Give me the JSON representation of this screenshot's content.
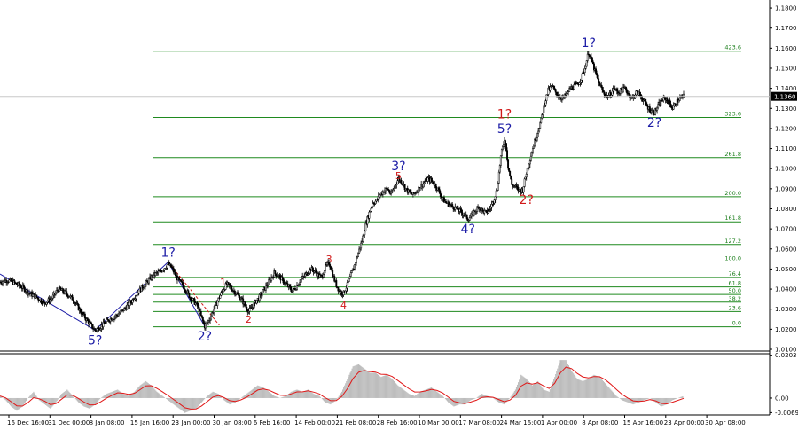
{
  "colors": {
    "background": "#ffffff",
    "candle": "#000000",
    "fib_line": "#1f8a1f",
    "fib_label": "#1a7d1a",
    "wave_blue": "#1c1ca6",
    "wave_red": "#d11919",
    "osc_fill": "#bdbdbd",
    "osc_signal": "#e01818",
    "current_price_line": "#c8c8c8",
    "current_price_box_bg": "#000000",
    "current_price_box_fg": "#ffffff"
  },
  "chart_data": [
    {
      "type": "line",
      "subtype": "candlestick",
      "title": "",
      "xlabel": "",
      "ylabel": "",
      "ylim": [
        1.01,
        1.184
      ],
      "current_price": "1.1360",
      "y_ticks": [
        "1.1800",
        "1.1700",
        "1.1600",
        "1.1500",
        "1.1400",
        "1.1300",
        "1.1200",
        "1.1100",
        "1.1000",
        "1.0900",
        "1.0800",
        "1.0700",
        "1.0600",
        "1.0500",
        "1.0400",
        "1.0300",
        "1.0200",
        "1.0100"
      ],
      "x_ticks": [
        "16 Dec 16:00",
        "31 Dec 00:00",
        "8 Jan 08:00",
        "15 Jan 16:00",
        "23 Jan 00:00",
        "30 Jan 08:00",
        "6 Feb 16:00",
        "14 Feb 00:00",
        "21 Feb 08:00",
        "28 Feb 16:00",
        "10 Mar 00:00",
        "17 Mar 08:00",
        "24 Mar 16:00",
        "1 Apr 00:00",
        "8 Apr 08:00",
        "15 Apr 16:00",
        "23 Apr 00:00",
        "30 Apr 08:00"
      ],
      "price_path": [
        [
          0,
          1.0435
        ],
        [
          4,
          1.0445
        ],
        [
          8,
          1.043
        ],
        [
          12,
          1.041
        ],
        [
          16,
          1.038
        ],
        [
          20,
          1.036
        ],
        [
          24,
          1.033
        ],
        [
          28,
          1.035
        ],
        [
          32,
          1.04
        ],
        [
          36,
          1.038
        ],
        [
          40,
          1.035
        ],
        [
          44,
          1.029
        ],
        [
          48,
          1.024
        ],
        [
          52,
          1.0195
        ],
        [
          56,
          1.022
        ],
        [
          60,
          1.025
        ],
        [
          64,
          1.027
        ],
        [
          68,
          1.03
        ],
        [
          72,
          1.034
        ],
        [
          76,
          1.039
        ],
        [
          80,
          1.043
        ],
        [
          84,
          1.047
        ],
        [
          88,
          1.049
        ],
        [
          92,
          1.0525
        ],
        [
          94,
          1.0505
        ],
        [
          96,
          1.047
        ],
        [
          98,
          1.044
        ],
        [
          100,
          1.042
        ],
        [
          102,
          1.039
        ],
        [
          104,
          1.036
        ],
        [
          106,
          1.034
        ],
        [
          108,
          1.0315
        ],
        [
          110,
          1.0265
        ],
        [
          112,
          1.0215
        ],
        [
          114,
          1.024
        ],
        [
          116,
          1.028
        ],
        [
          118,
          1.032
        ],
        [
          120,
          1.036
        ],
        [
          122,
          1.0395
        ],
        [
          124,
          1.0425
        ],
        [
          126,
          1.041
        ],
        [
          128,
          1.039
        ],
        [
          130,
          1.037
        ],
        [
          132,
          1.035
        ],
        [
          134,
          1.032
        ],
        [
          136,
          1.029
        ],
        [
          138,
          1.031
        ],
        [
          140,
          1.034
        ],
        [
          142,
          1.036
        ],
        [
          144,
          1.039
        ],
        [
          146,
          1.042
        ],
        [
          148,
          1.045
        ],
        [
          150,
          1.048
        ],
        [
          152,
          1.047
        ],
        [
          154,
          1.045
        ],
        [
          156,
          1.043
        ],
        [
          158,
          1.041
        ],
        [
          160,
          1.039
        ],
        [
          162,
          1.041
        ],
        [
          164,
          1.044
        ],
        [
          166,
          1.046
        ],
        [
          168,
          1.048
        ],
        [
          170,
          1.05
        ],
        [
          172,
          1.049
        ],
        [
          174,
          1.047
        ],
        [
          176,
          1.046
        ],
        [
          178,
          1.051
        ],
        [
          180,
          1.053
        ],
        [
          181,
          1.051
        ],
        [
          182,
          1.047
        ],
        [
          184,
          1.042
        ],
        [
          186,
          1.0385
        ],
        [
          188,
          1.038
        ],
        [
          190,
          1.042
        ],
        [
          192,
          1.047
        ],
        [
          194,
          1.052
        ],
        [
          196,
          1.058
        ],
        [
          198,
          1.064
        ],
        [
          200,
          1.072
        ],
        [
          202,
          1.078
        ],
        [
          204,
          1.083
        ],
        [
          206,
          1.084
        ],
        [
          208,
          1.087
        ],
        [
          210,
          1.089
        ],
        [
          212,
          1.09
        ],
        [
          214,
          1.087
        ],
        [
          216,
          1.0915
        ],
        [
          218,
          1.095
        ],
        [
          220,
          1.093
        ],
        [
          222,
          1.09
        ],
        [
          224,
          1.088
        ],
        [
          226,
          1.087
        ],
        [
          228,
          1.089
        ],
        [
          230,
          1.091
        ],
        [
          232,
          1.093
        ],
        [
          234,
          1.095
        ],
        [
          236,
          1.094
        ],
        [
          238,
          1.092
        ],
        [
          240,
          1.089
        ],
        [
          242,
          1.085
        ],
        [
          244,
          1.083
        ],
        [
          246,
          1.082
        ],
        [
          248,
          1.081
        ],
        [
          250,
          1.08
        ],
        [
          252,
          1.0785
        ],
        [
          254,
          1.077
        ],
        [
          256,
          1.075
        ],
        [
          258,
          1.0765
        ],
        [
          260,
          1.079
        ],
        [
          262,
          1.081
        ],
        [
          264,
          1.079
        ],
        [
          266,
          1.078
        ],
        [
          268,
          1.08
        ],
        [
          270,
          1.084
        ],
        [
          272,
          1.09
        ],
        [
          274,
          1.106
        ],
        [
          276,
          1.115
        ],
        [
          277,
          1.11
        ],
        [
          278,
          1.101
        ],
        [
          280,
          1.092
        ],
        [
          282,
          1.091
        ],
        [
          284,
          1.089
        ],
        [
          286,
          1.0895
        ],
        [
          288,
          1.098
        ],
        [
          290,
          1.105
        ],
        [
          292,
          1.112
        ],
        [
          294,
          1.118
        ],
        [
          296,
          1.124
        ],
        [
          298,
          1.133
        ],
        [
          300,
          1.139
        ],
        [
          302,
          1.141
        ],
        [
          304,
          1.138
        ],
        [
          306,
          1.136
        ],
        [
          308,
          1.135
        ],
        [
          310,
          1.137
        ],
        [
          312,
          1.14
        ],
        [
          314,
          1.141
        ],
        [
          316,
          1.142
        ],
        [
          318,
          1.145
        ],
        [
          320,
          1.15
        ],
        [
          322,
          1.158
        ],
        [
          324,
          1.153
        ],
        [
          326,
          1.147
        ],
        [
          328,
          1.142
        ],
        [
          330,
          1.138
        ],
        [
          332,
          1.136
        ],
        [
          334,
          1.137
        ],
        [
          336,
          1.14
        ],
        [
          338,
          1.138
        ],
        [
          340,
          1.139
        ],
        [
          342,
          1.14
        ],
        [
          344,
          1.137
        ],
        [
          346,
          1.135
        ],
        [
          348,
          1.138
        ],
        [
          350,
          1.137
        ],
        [
          352,
          1.134
        ],
        [
          354,
          1.131
        ],
        [
          356,
          1.129
        ],
        [
          358,
          1.128
        ],
        [
          360,
          1.131
        ],
        [
          362,
          1.134
        ],
        [
          364,
          1.135
        ],
        [
          366,
          1.133
        ],
        [
          368,
          1.13
        ],
        [
          370,
          1.133
        ],
        [
          372,
          1.135
        ],
        [
          374,
          1.136
        ]
      ],
      "fib_levels": [
        {
          "label": "423.6",
          "price": 1.1585
        },
        {
          "label": "323.6",
          "price": 1.1255
        },
        {
          "label": "261.8",
          "price": 1.1055
        },
        {
          "label": "200.0",
          "price": 1.086
        },
        {
          "label": "161.8",
          "price": 1.0735
        },
        {
          "label": "127.2",
          "price": 1.0622
        },
        {
          "label": "100.0",
          "price": 1.0535
        },
        {
          "label": "76.4",
          "price": 1.0458
        },
        {
          "label": "61.8",
          "price": 1.0411
        },
        {
          "label": "50.0",
          "price": 1.0373
        },
        {
          "label": "38.2",
          "price": 1.0335
        },
        {
          "label": "23.6",
          "price": 1.0288
        },
        {
          "label": "0.0",
          "price": 1.0212
        }
      ],
      "wave_labels": [
        {
          "text": "1?",
          "color": "blue",
          "x": 92,
          "price": 1.0535,
          "size": "large",
          "pos": "above"
        },
        {
          "text": "5?",
          "color": "blue",
          "x": 52,
          "price": 1.0195,
          "size": "large",
          "pos": "below"
        },
        {
          "text": "2?",
          "color": "blue",
          "x": 112,
          "price": 1.0215,
          "size": "large",
          "pos": "below"
        },
        {
          "text": "1",
          "color": "red",
          "x": 122,
          "price": 1.0395,
          "size": "small",
          "pos": "above"
        },
        {
          "text": "2",
          "color": "red",
          "x": 136,
          "price": 1.029,
          "size": "small",
          "pos": "below"
        },
        {
          "text": "3",
          "color": "red",
          "x": 180,
          "price": 1.051,
          "size": "small",
          "pos": "above"
        },
        {
          "text": "4",
          "color": "red",
          "x": 188,
          "price": 1.036,
          "size": "small",
          "pos": "below"
        },
        {
          "text": "5",
          "color": "red",
          "x": 218,
          "price": 1.0925,
          "size": "small",
          "pos": "above"
        },
        {
          "text": "3?",
          "color": "blue",
          "x": 218,
          "price": 1.0965,
          "size": "large",
          "pos": "above"
        },
        {
          "text": "4?",
          "color": "blue",
          "x": 256,
          "price": 1.075,
          "size": "large",
          "pos": "below"
        },
        {
          "text": "5?",
          "color": "blue",
          "x": 276,
          "price": 1.115,
          "size": "large",
          "pos": "above"
        },
        {
          "text": "1?",
          "color": "red",
          "x": 276,
          "price": 1.1225,
          "size": "large",
          "pos": "above"
        },
        {
          "text": "2?",
          "color": "red",
          "x": 288,
          "price": 1.0895,
          "size": "large",
          "pos": "below"
        },
        {
          "text": "1?",
          "color": "blue",
          "x": 322,
          "price": 1.158,
          "size": "large",
          "pos": "above"
        },
        {
          "text": "2?",
          "color": "blue",
          "x": 358,
          "price": 1.128,
          "size": "large",
          "pos": "below"
        }
      ],
      "blue_wave_lines": [
        [
          [
            0,
            1.0475
          ],
          [
            52,
            1.0195
          ]
        ],
        [
          [
            52,
            1.0195
          ],
          [
            92,
            1.0535
          ]
        ],
        [
          [
            92,
            1.0535
          ],
          [
            112,
            1.0215
          ]
        ]
      ],
      "red_dash_lines": [
        [
          [
            92,
            1.0535
          ],
          [
            120,
            1.022
          ]
        ]
      ]
    },
    {
      "type": "area",
      "title": "",
      "ylim": [
        -0.008,
        0.021
      ],
      "y_ticks": [
        "0.0203",
        "0.00",
        "-0.0069"
      ],
      "histogram": [
        0.001,
        -0.001,
        -0.004,
        -0.006,
        -0.004,
        0.0,
        0.003,
        -0.001,
        -0.003,
        -0.005,
        -0.002,
        0.002,
        0.004,
        0.001,
        -0.002,
        -0.004,
        -0.005,
        -0.003,
        0.0,
        0.002,
        0.003,
        0.004,
        0.002,
        0.001,
        0.003,
        0.006,
        0.008,
        0.006,
        0.003,
        0.001,
        -0.001,
        -0.003,
        -0.005,
        -0.007,
        -0.006,
        -0.005,
        -0.002,
        0.001,
        0.003,
        0.002,
        -0.001,
        -0.003,
        -0.002,
        0.0,
        0.002,
        0.004,
        0.006,
        0.005,
        0.003,
        0.001,
        0.0,
        0.001,
        0.003,
        0.004,
        0.003,
        0.004,
        0.002,
        0.001,
        -0.002,
        -0.003,
        -0.001,
        0.003,
        0.009,
        0.015,
        0.016,
        0.014,
        0.012,
        0.012,
        0.01,
        0.011,
        0.009,
        0.006,
        0.004,
        0.002,
        0.001,
        0.003,
        0.004,
        0.005,
        0.003,
        0.001,
        -0.002,
        -0.004,
        -0.003,
        -0.003,
        -0.001,
        0.0,
        0.002,
        0.001,
        0.0,
        -0.002,
        -0.003,
        0.0,
        0.004,
        0.011,
        0.009,
        0.006,
        0.008,
        0.004,
        0.003,
        0.01,
        0.018,
        0.018,
        0.013,
        0.009,
        0.008,
        0.009,
        0.011,
        0.01,
        0.007,
        0.004,
        0.001,
        -0.001,
        -0.002,
        -0.003,
        -0.002,
        -0.001,
        0.0,
        -0.002,
        -0.004,
        -0.003,
        -0.001,
        0.0,
        0.001
      ]
    }
  ]
}
